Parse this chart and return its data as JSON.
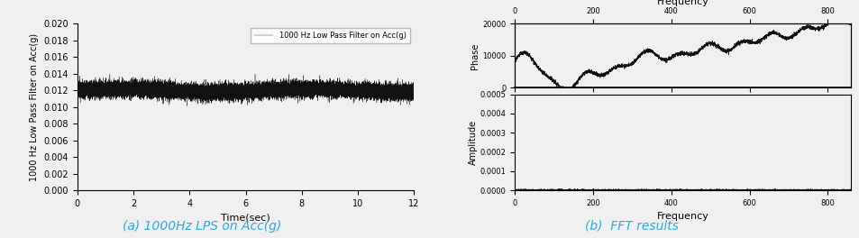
{
  "left_plot": {
    "ylabel": "1000 Hz Low Pass Filter on Acc(g)",
    "xlabel": "Time(sec)",
    "xlim": [
      0,
      12
    ],
    "ylim": [
      0.0,
      0.02
    ],
    "yticks": [
      0.0,
      0.002,
      0.004,
      0.006,
      0.008,
      0.01,
      0.012,
      0.014,
      0.016,
      0.018,
      0.02
    ],
    "xticks": [
      0,
      2,
      4,
      6,
      8,
      10,
      12
    ],
    "signal_mean": 0.012,
    "signal_std": 0.00045,
    "legend_label": "1000 Hz Low Pass Filter on Acc(g)",
    "caption": "(a) 1000Hz LPS on Acc(g)"
  },
  "right_plot": {
    "phase_ylabel": "Phase",
    "amplitude_ylabel": "Amplitude",
    "xlabel": "Frequency",
    "top_xlabel": "Frequency",
    "xlim": [
      0,
      860
    ],
    "xticks": [
      0,
      200,
      400,
      600,
      800
    ],
    "phase_ylim": [
      0,
      20000
    ],
    "phase_yticks": [
      0,
      10000,
      20000
    ],
    "amplitude_ylim": [
      0,
      0.0005
    ],
    "amplitude_yticks": [
      0.0,
      0.0001,
      0.0002,
      0.0003,
      0.0004,
      0.0005
    ],
    "caption": "(b)  FFT results"
  },
  "caption_color": "#29ABE2",
  "caption_fontsize": 10,
  "line_color": "#111111",
  "bg_color": "#f0f0f0"
}
